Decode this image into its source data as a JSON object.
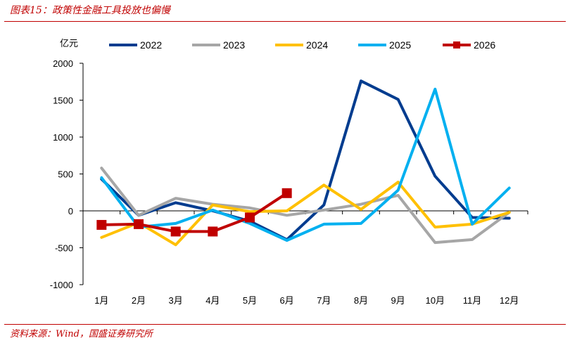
{
  "header": {
    "title": "图表15：政策性金融工具投放也偏慢"
  },
  "footer": {
    "source": "资料来源：Wind，国盛证券研究所"
  },
  "chart_data": {
    "type": "line",
    "title": "",
    "xlabel": "",
    "ylabel": "亿元",
    "categories": [
      "1月",
      "2月",
      "3月",
      "4月",
      "5月",
      "6月",
      "7月",
      "8月",
      "9月",
      "10月",
      "11月",
      "12月"
    ],
    "ylim": [
      -1000,
      2000
    ],
    "yticks": [
      -1000,
      -500,
      0,
      500,
      1000,
      1500,
      2000
    ],
    "grid": false,
    "legend": "top",
    "series": [
      {
        "name": "2022",
        "color": "#003c8f",
        "marker": "none",
        "values": [
          430,
          -60,
          110,
          0,
          -140,
          -390,
          80,
          1760,
          1510,
          470,
          -90,
          -100
        ]
      },
      {
        "name": "2023",
        "color": "#a6a6a6",
        "marker": "none",
        "values": [
          580,
          -60,
          170,
          90,
          40,
          -60,
          10,
          90,
          210,
          -430,
          -390,
          -20
        ]
      },
      {
        "name": "2024",
        "color": "#ffc000",
        "marker": "none",
        "values": [
          -360,
          -160,
          -460,
          80,
          -10,
          0,
          350,
          20,
          390,
          -220,
          -180,
          -20
        ]
      },
      {
        "name": "2025",
        "color": "#00b0f0",
        "marker": "none",
        "values": [
          450,
          -220,
          -170,
          10,
          -170,
          -400,
          -180,
          -170,
          280,
          1650,
          -180,
          310
        ]
      },
      {
        "name": "2026",
        "color": "#c00000",
        "marker": "square",
        "values": [
          -190,
          -180,
          -280,
          -280,
          -90,
          240,
          null,
          null,
          null,
          null,
          null,
          null
        ]
      }
    ]
  }
}
